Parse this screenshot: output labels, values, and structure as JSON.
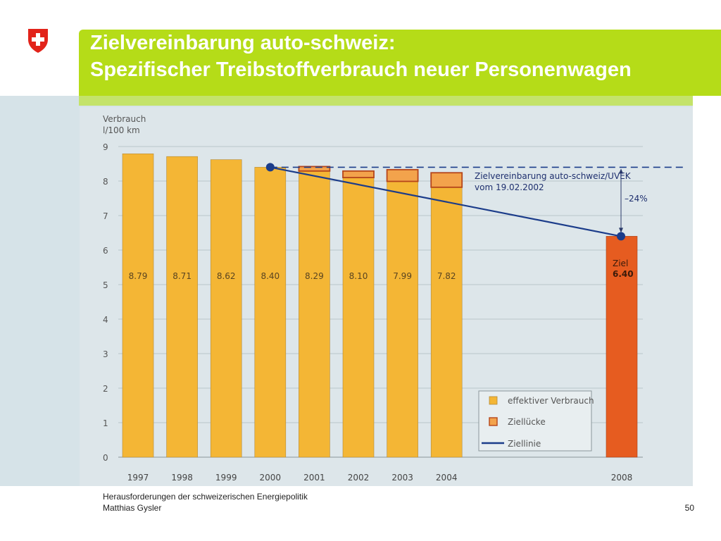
{
  "slide": {
    "title_line1": "Zielvereinbarung auto-schweiz:",
    "title_line2": "Spezifischer Treibstoffverbrauch neuer Personenwagen",
    "footer_line1": "Herausforderungen der schweizerischen Energiepolitik",
    "footer_line2": "Matthias Gysler",
    "page_number": "50",
    "logo_icon": "swiss-cross-shield-icon"
  },
  "colors": {
    "title_band": "#b5dc18",
    "bar_effective": "#f4b635",
    "bar_gap": "#f3a34c",
    "bar_target": "#e65c20",
    "line": "#1b3c8a",
    "panel": "#d6e3e8"
  },
  "chart_data": {
    "type": "bar",
    "ylabel": "Verbrauch\nl/100 km",
    "ylim": [
      0,
      9
    ],
    "yticks": [
      0,
      1,
      2,
      3,
      4,
      5,
      6,
      7,
      8,
      9
    ],
    "grid": true,
    "categories": [
      "1997",
      "1998",
      "1999",
      "2000",
      "2001",
      "2002",
      "2003",
      "2004",
      "2008"
    ],
    "series": [
      {
        "name": "effektiver Verbrauch",
        "values": [
          8.79,
          8.71,
          8.62,
          8.4,
          8.29,
          8.1,
          7.99,
          7.82,
          null
        ],
        "labels": [
          "8.79",
          "8.71",
          "8.62",
          "8.40",
          "8.29",
          "8.10",
          "7.99",
          "7.82",
          ""
        ]
      },
      {
        "name": "Ziellücke",
        "values": [
          0,
          0,
          0,
          0,
          0.13,
          0.19,
          0.34,
          0.42,
          null
        ]
      },
      {
        "name": "Ziel",
        "values": [
          null,
          null,
          null,
          null,
          null,
          null,
          null,
          null,
          6.4
        ],
        "labels": [
          "",
          "",
          "",
          "",
          "",
          "",
          "",
          "",
          "Ziel\n6.40"
        ]
      }
    ],
    "target_line": {
      "name": "Ziellinie",
      "from": {
        "x": "2000",
        "y": 8.4
      },
      "to": {
        "x": "2008",
        "y": 6.4
      }
    },
    "reference_line": {
      "y": 8.4,
      "style": "dashed"
    },
    "annotations": {
      "agreement_line1": "Zielvereinbarung auto-schweiz/UVEK",
      "agreement_line2": "vom 19.02.2002",
      "reduction": "–24%"
    },
    "legend": {
      "placement": "bottom-right",
      "items": [
        "effektiver Verbrauch",
        "Ziellücke",
        "Ziellinie"
      ]
    }
  }
}
